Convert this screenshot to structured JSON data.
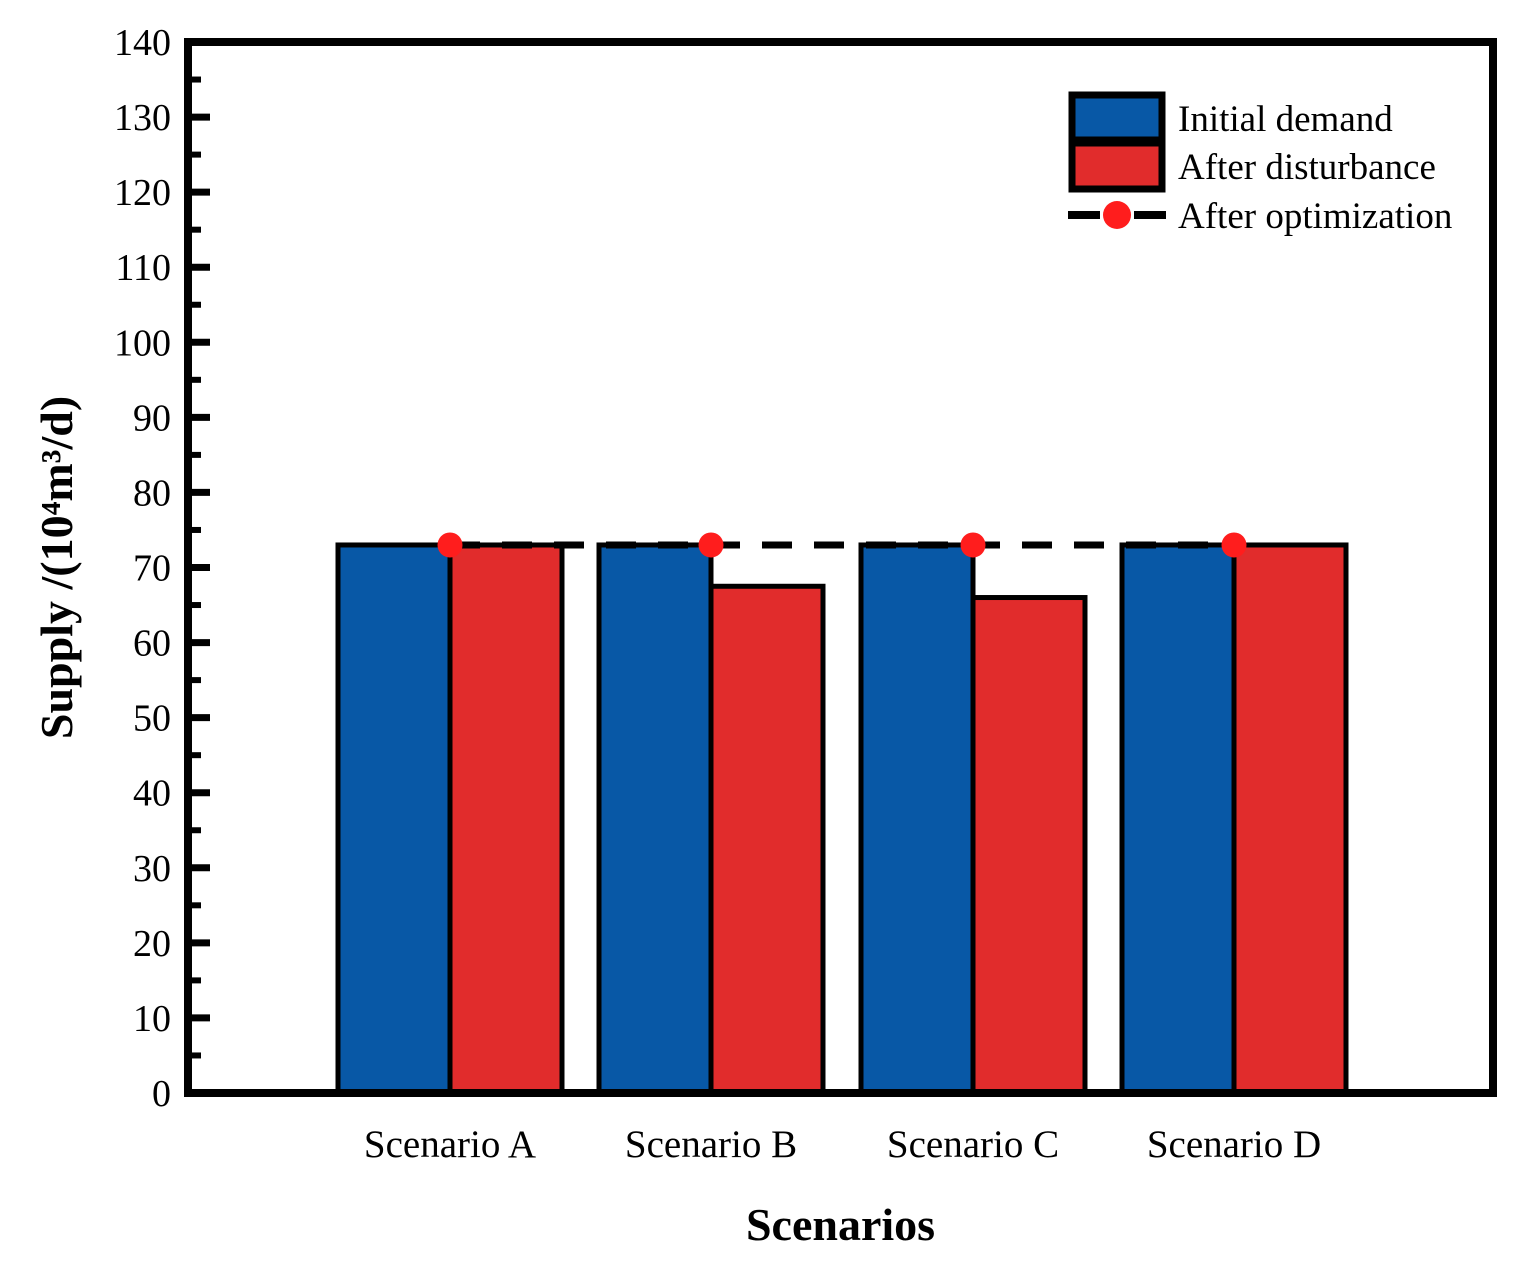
{
  "chart_data": {
    "type": "bar",
    "title": "",
    "xlabel": "Scenarios",
    "ylabel": "Supply /(10⁴m³/d)",
    "categories": [
      "Scenario A",
      "Scenario B",
      "Scenario C",
      "Scenario D"
    ],
    "series": [
      {
        "name": "Initial demand",
        "kind": "bar",
        "color": "#0858A6",
        "values": [
          73,
          73,
          73,
          73
        ]
      },
      {
        "name": "After disturbance",
        "kind": "bar",
        "color": "#E12C2C",
        "values": [
          73,
          67.5,
          66,
          73
        ]
      },
      {
        "name": "After optimization",
        "kind": "line-marker",
        "line_color": "#000000",
        "marker_color": "#FF1D1D",
        "linestyle": "dashed",
        "values": [
          73,
          73,
          73,
          73
        ]
      }
    ],
    "ylim": [
      0,
      140
    ],
    "ytick_step": 10,
    "yminor_step": 5,
    "grid": false,
    "bar_edge_color": "#000000",
    "axis_color": "#000000",
    "background": "#FFFFFF",
    "legend": {
      "position": "upper-right"
    }
  }
}
